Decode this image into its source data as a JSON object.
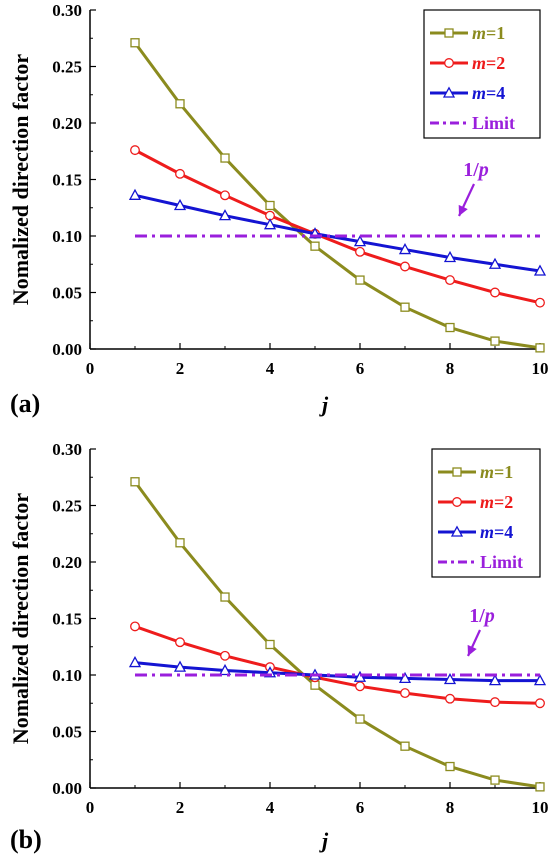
{
  "chart_data": [
    {
      "type": "line",
      "panel_label": "(a)",
      "xlabel": "j",
      "ylabel": "Nomalized direction factor",
      "xlim": [
        0,
        10
      ],
      "ylim": [
        0,
        0.3
      ],
      "xticks": [
        0,
        2,
        4,
        6,
        8,
        10
      ],
      "yticks": [
        0.0,
        0.05,
        0.1,
        0.15,
        0.2,
        0.25,
        0.3
      ],
      "xtick_labels": [
        "0",
        "2",
        "4",
        "6",
        "8",
        "10"
      ],
      "ytick_labels": [
        "0.00",
        "0.05",
        "0.10",
        "0.15",
        "0.20",
        "0.25",
        "0.30"
      ],
      "grid": false,
      "legend_position": "top-right",
      "x": [
        1,
        2,
        3,
        4,
        5,
        6,
        7,
        8,
        9,
        10
      ],
      "series": [
        {
          "name": "m=1",
          "name_italic": "m",
          "name_rest": "=1",
          "color": "#8b8b1e",
          "marker": "square",
          "values": [
            0.271,
            0.217,
            0.169,
            0.127,
            0.091,
            0.061,
            0.037,
            0.019,
            0.007,
            0.001
          ]
        },
        {
          "name": "m=2",
          "name_italic": "m",
          "name_rest": "=2",
          "color": "#ee1c1c",
          "marker": "circle",
          "values": [
            0.176,
            0.155,
            0.136,
            0.118,
            0.102,
            0.086,
            0.073,
            0.061,
            0.05,
            0.041
          ]
        },
        {
          "name": "m=4",
          "name_italic": "m",
          "name_rest": "=4",
          "color": "#1414d2",
          "marker": "triangle",
          "values": [
            0.136,
            0.127,
            0.118,
            0.11,
            0.102,
            0.095,
            0.088,
            0.081,
            0.075,
            0.069
          ]
        },
        {
          "name": "Limit",
          "name_italic": "",
          "name_rest": "Limit",
          "color": "#9a1fdc",
          "marker": "none",
          "dash": "dashdot",
          "values": [
            0.1,
            0.1,
            0.1,
            0.1,
            0.1,
            0.1,
            0.1,
            0.1,
            0.1,
            0.1
          ]
        }
      ],
      "annotation": {
        "text_num": "1/",
        "text_italic": "p",
        "color": "#9a1fdc",
        "points_to": [
          8.2,
          0.1
        ]
      }
    },
    {
      "type": "line",
      "panel_label": "(b)",
      "xlabel": "j",
      "ylabel": "Nomalized direction factor",
      "xlim": [
        0,
        10
      ],
      "ylim": [
        0,
        0.3
      ],
      "xticks": [
        0,
        2,
        4,
        6,
        8,
        10
      ],
      "yticks": [
        0.0,
        0.05,
        0.1,
        0.15,
        0.2,
        0.25,
        0.3
      ],
      "xtick_labels": [
        "0",
        "2",
        "4",
        "6",
        "8",
        "10"
      ],
      "ytick_labels": [
        "0.00",
        "0.05",
        "0.10",
        "0.15",
        "0.20",
        "0.25",
        "0.30"
      ],
      "grid": false,
      "legend_position": "top-right",
      "x": [
        1,
        2,
        3,
        4,
        5,
        6,
        7,
        8,
        9,
        10
      ],
      "series": [
        {
          "name": "m=1",
          "name_italic": "m",
          "name_rest": "=1",
          "color": "#8b8b1e",
          "marker": "square",
          "values": [
            0.271,
            0.217,
            0.169,
            0.127,
            0.091,
            0.061,
            0.037,
            0.019,
            0.007,
            0.001
          ]
        },
        {
          "name": "m=2",
          "name_italic": "m",
          "name_rest": "=2",
          "color": "#ee1c1c",
          "marker": "circle",
          "values": [
            0.143,
            0.129,
            0.117,
            0.107,
            0.098,
            0.09,
            0.084,
            0.079,
            0.076,
            0.075
          ]
        },
        {
          "name": "m=4",
          "name_italic": "m",
          "name_rest": "=4",
          "color": "#1414d2",
          "marker": "triangle",
          "values": [
            0.111,
            0.107,
            0.104,
            0.102,
            0.1,
            0.098,
            0.097,
            0.096,
            0.095,
            0.095
          ]
        },
        {
          "name": "Limit",
          "name_italic": "",
          "name_rest": "Limit",
          "color": "#9a1fdc",
          "marker": "none",
          "dash": "dashdot",
          "values": [
            0.1,
            0.1,
            0.1,
            0.1,
            0.1,
            0.1,
            0.1,
            0.1,
            0.1,
            0.1
          ]
        }
      ],
      "annotation": {
        "text_num": "1/",
        "text_italic": "p",
        "color": "#9a1fdc",
        "points_to": [
          8.3,
          0.1
        ]
      }
    }
  ]
}
